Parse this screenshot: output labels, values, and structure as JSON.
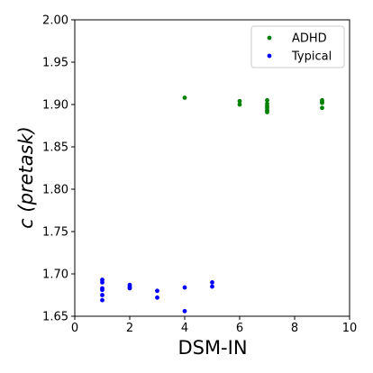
{
  "chart_data": {
    "type": "scatter",
    "title": "",
    "xlabel": "DSM-IN",
    "ylabel": "c (pretask)",
    "xlim": [
      0,
      10
    ],
    "ylim": [
      1.65,
      2.0
    ],
    "x_ticks": [
      "0",
      "2",
      "4",
      "6",
      "8",
      "10"
    ],
    "y_ticks": [
      "1.65",
      "1.70",
      "1.75",
      "1.80",
      "1.85",
      "1.90",
      "1.95",
      "2.00"
    ],
    "x_tick_values": [
      0,
      2,
      4,
      6,
      8,
      10
    ],
    "y_tick_values": [
      1.65,
      1.7,
      1.75,
      1.8,
      1.85,
      1.9,
      1.95,
      2.0
    ],
    "grid": false,
    "legend_position": "top-right",
    "series": [
      {
        "name": "ADHD",
        "color": "#008000",
        "points": [
          [
            4,
            1.908
          ],
          [
            6,
            1.904
          ],
          [
            6,
            1.9
          ],
          [
            7,
            1.905
          ],
          [
            7,
            1.901
          ],
          [
            7,
            1.898
          ],
          [
            7,
            1.896
          ],
          [
            7,
            1.893
          ],
          [
            7,
            1.891
          ],
          [
            9,
            1.905
          ],
          [
            9,
            1.903
          ],
          [
            9,
            1.902
          ],
          [
            9,
            1.896
          ]
        ]
      },
      {
        "name": "Typical",
        "color": "#0000ff",
        "points": [
          [
            1,
            1.693
          ],
          [
            1,
            1.69
          ],
          [
            1,
            1.683
          ],
          [
            1,
            1.681
          ],
          [
            1,
            1.675
          ],
          [
            1,
            1.669
          ],
          [
            2,
            1.687
          ],
          [
            2,
            1.685
          ],
          [
            2,
            1.683
          ],
          [
            3,
            1.68
          ],
          [
            3,
            1.672
          ],
          [
            4,
            1.684
          ],
          [
            4,
            1.656
          ],
          [
            5,
            1.69
          ],
          [
            5,
            1.685
          ]
        ]
      }
    ]
  }
}
